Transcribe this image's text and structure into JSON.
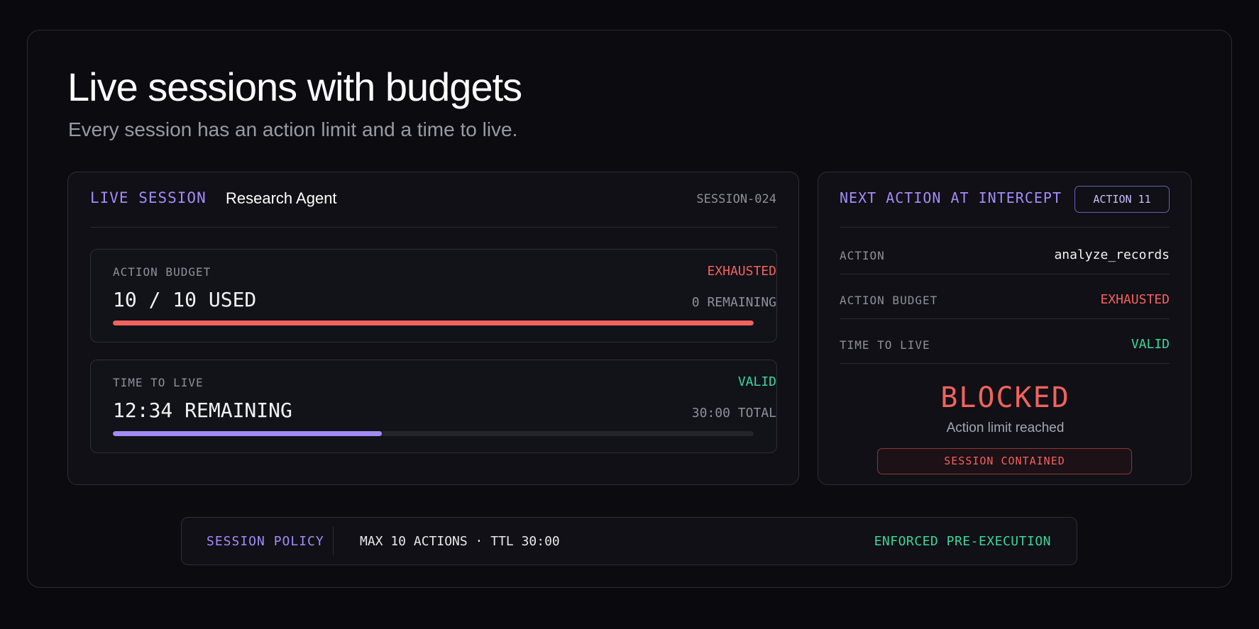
{
  "header": {
    "title": "Live sessions with budgets",
    "subtitle": "Every session has an action limit and a time to live."
  },
  "session": {
    "live_label": "LIVE SESSION",
    "agent_name": "Research Agent",
    "session_id": "SESSION-024",
    "action_budget": {
      "label": "ACTION BUDGET",
      "status": "EXHAUSTED",
      "value": "10 / 10 USED",
      "remaining": "0 REMAINING",
      "fill_fraction": 1.0
    },
    "ttl": {
      "label": "TIME TO LIVE",
      "status": "VALID",
      "value": "12:34 REMAINING",
      "total": "30:00 TOTAL",
      "fill_fraction": 0.42
    }
  },
  "intercept": {
    "title": "NEXT ACTION AT INTERCEPT",
    "action_badge": "ACTION 11",
    "rows": [
      {
        "label": "ACTION",
        "value": "analyze_records"
      },
      {
        "label": "ACTION BUDGET",
        "value": "EXHAUSTED"
      },
      {
        "label": "TIME TO LIVE",
        "value": "VALID"
      }
    ],
    "verdict": "BLOCKED",
    "reason": "Action limit reached",
    "containment": "SESSION CONTAINED"
  },
  "policy": {
    "label": "SESSION POLICY",
    "rule": "MAX 10 ACTIONS · TTL 30:00",
    "enforcement": "ENFORCED PRE-EXECUTION"
  },
  "colors": {
    "accent": "#a48cf6",
    "danger": "#f2625e",
    "success": "#3ed59a",
    "background": "#09090e"
  }
}
